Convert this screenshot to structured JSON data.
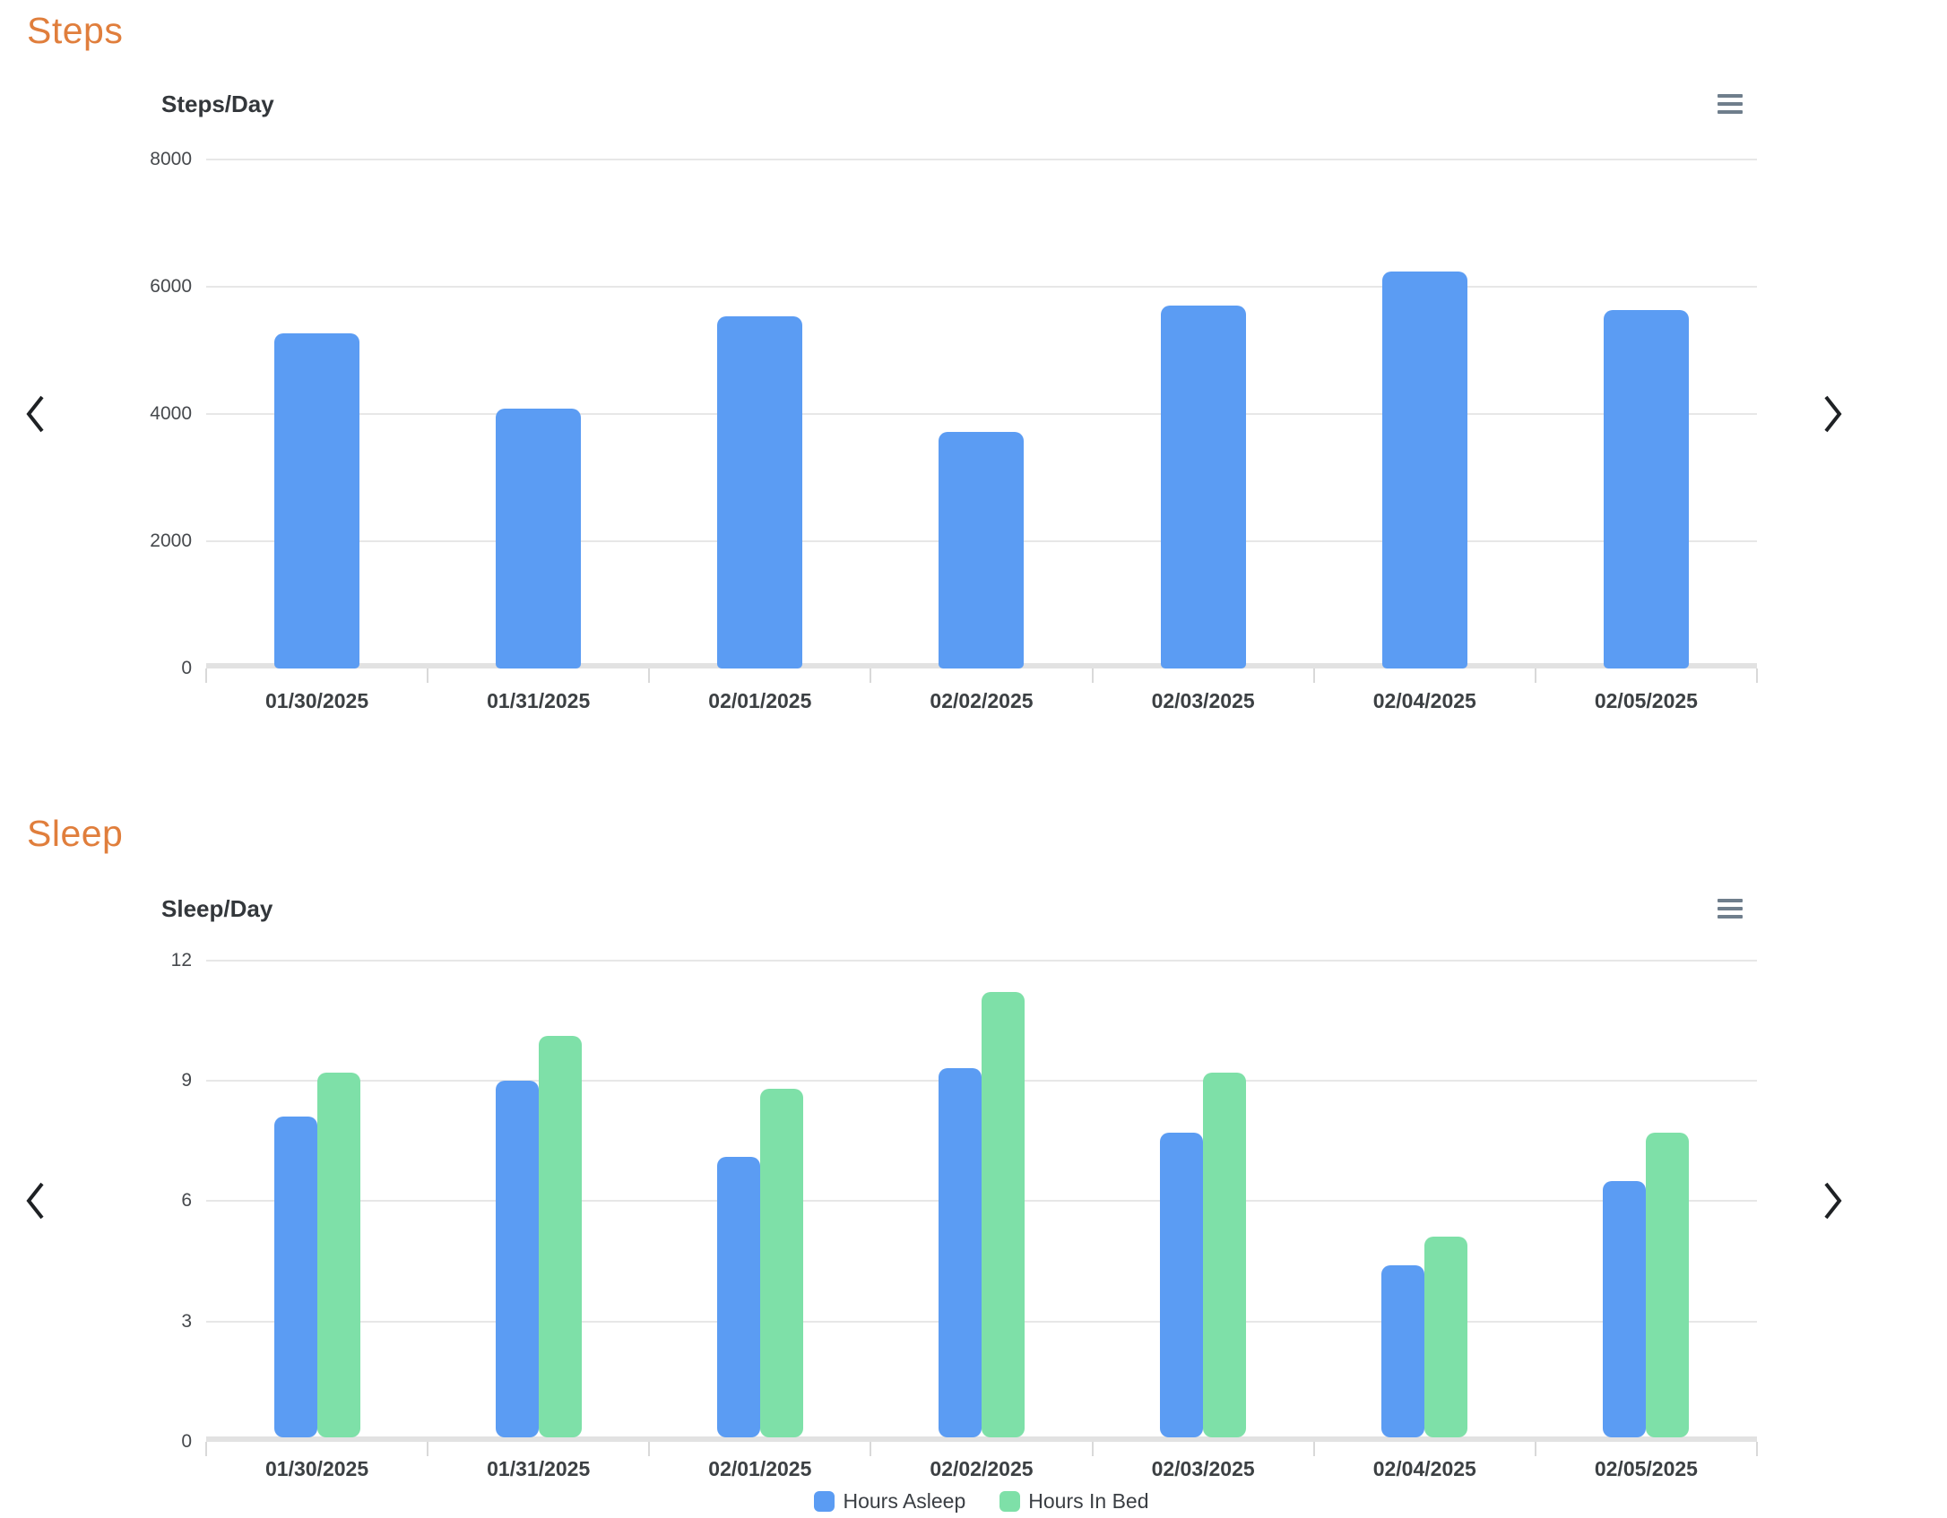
{
  "sections": [
    {
      "heading": "Steps"
    },
    {
      "heading": "Sleep"
    }
  ],
  "icons": {
    "chart_menu": "hamburger-menu-icon",
    "prev": "chevron-left-icon",
    "next": "chevron-right-icon"
  },
  "colors": {
    "heading_orange": "#E07E3C",
    "bar_blue": "#5B9CF3",
    "bar_green": "#7EE0A8",
    "menu_icon_gray": "#6F7E8C",
    "gridline_gray": "#E7E7E7",
    "axis_text": "#3C4043"
  },
  "chart_data": [
    {
      "type": "bar",
      "title": "Steps/Day",
      "categories": [
        "01/30/2025",
        "01/31/2025",
        "02/01/2025",
        "02/02/2025",
        "02/03/2025",
        "02/04/2025",
        "02/05/2025"
      ],
      "values": [
        5270,
        4080,
        5530,
        3720,
        5700,
        6240,
        5640
      ],
      "xlabel": "",
      "ylabel": "",
      "ylim": [
        0,
        8000
      ],
      "yticks": [
        0,
        2000,
        4000,
        6000,
        8000
      ],
      "grid": true,
      "bar_color": "#5B9CF3",
      "legend_position": "none"
    },
    {
      "type": "bar",
      "title": "Sleep/Day",
      "categories": [
        "01/30/2025",
        "01/31/2025",
        "02/01/2025",
        "02/02/2025",
        "02/03/2025",
        "02/04/2025",
        "02/05/2025"
      ],
      "series": [
        {
          "name": "Hours Asleep",
          "color": "#5B9CF3",
          "values": [
            8.0,
            8.9,
            7.0,
            9.2,
            7.6,
            4.3,
            6.4
          ]
        },
        {
          "name": "Hours In Bed",
          "color": "#7EE0A8",
          "values": [
            9.1,
            10.0,
            8.7,
            11.1,
            9.1,
            5.0,
            7.6
          ]
        }
      ],
      "xlabel": "",
      "ylabel": "",
      "ylim": [
        0,
        12
      ],
      "yticks": [
        0,
        3,
        6,
        9,
        12
      ],
      "grid": true,
      "legend_position": "bottom"
    }
  ]
}
